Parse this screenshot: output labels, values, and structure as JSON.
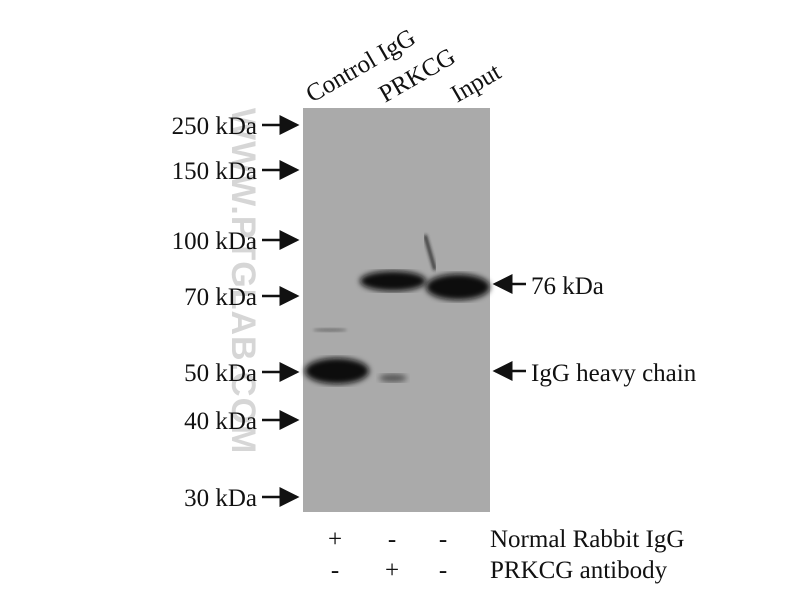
{
  "lanes": [
    "Control IgG",
    "PRKCG",
    "Input"
  ],
  "markers": [
    "250 kDa",
    "150 kDa",
    "100 kDa",
    "70 kDa",
    "50 kDa",
    "40 kDa",
    "30 kDa"
  ],
  "band_labels": [
    "76 kDa",
    "IgG heavy chain"
  ],
  "watermark": "WWW.PTGLAB.COM",
  "conditions": [
    {
      "label": "Normal Rabbit IgG",
      "signs": [
        "+",
        "-",
        "-"
      ]
    },
    {
      "label": "PRKCG antibody",
      "signs": [
        "-",
        "+",
        "-"
      ]
    }
  ]
}
